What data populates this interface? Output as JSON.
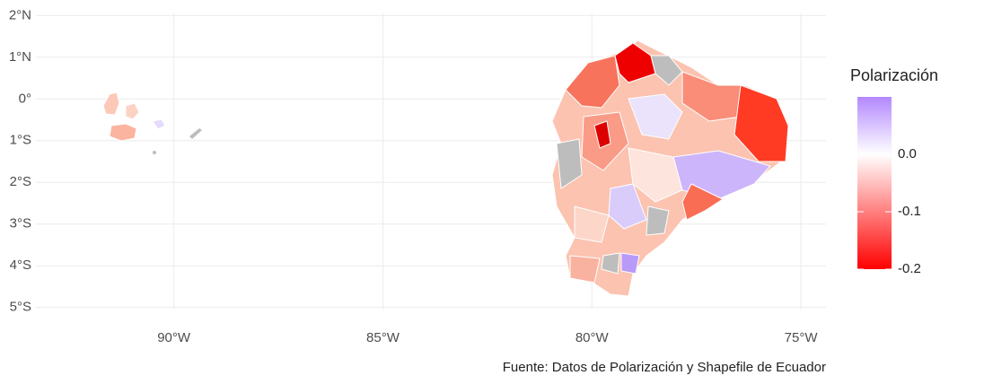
{
  "chart_data": {
    "type": "map",
    "xlim": [
      -93.3,
      -74.4
    ],
    "ylim": [
      -5.05,
      2.05
    ],
    "xticks": [
      {
        "value": -90,
        "label": "90°W"
      },
      {
        "value": -85,
        "label": "85°W"
      },
      {
        "value": -80,
        "label": "80°W"
      },
      {
        "value": -75,
        "label": "75°W"
      }
    ],
    "yticks": [
      {
        "value": 2,
        "label": "2°N"
      },
      {
        "value": 1,
        "label": "1°N"
      },
      {
        "value": 0,
        "label": "0°"
      },
      {
        "value": -1,
        "label": "1°S"
      },
      {
        "value": -2,
        "label": "2°S"
      },
      {
        "value": -3,
        "label": "3°S"
      },
      {
        "value": -4,
        "label": "4°S"
      },
      {
        "value": -5,
        "label": "5°S"
      }
    ],
    "grid": true,
    "legend": {
      "title": "Polarización",
      "lim": [
        -0.2,
        0.1
      ],
      "ticks": [
        {
          "value": 0,
          "label": "0.0"
        },
        {
          "value": -0.1,
          "label": "-0.1"
        },
        {
          "value": -0.2,
          "label": "-0.2"
        }
      ],
      "colors": {
        "low": "#ff0000",
        "mid": "#ffffff",
        "high": "#b388ff"
      }
    },
    "caption": "Fuente: Datos de Polarización y Shapefile de Ecuador"
  }
}
